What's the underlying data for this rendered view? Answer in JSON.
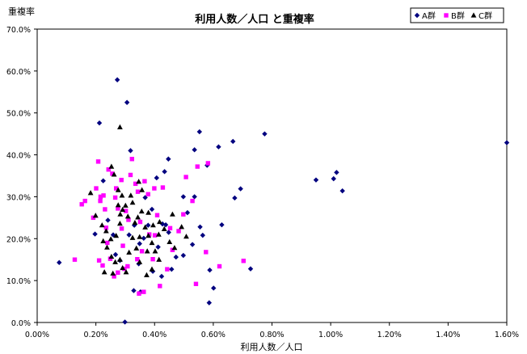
{
  "chart_data": {
    "type": "scatter",
    "title": "利用人数／人口 と重複率",
    "xlabel": "利用人数／人口",
    "ylabel": "重複率",
    "xlim": [
      0,
      0.016
    ],
    "ylim": [
      0,
      0.7
    ],
    "x_ticks": [
      0,
      0.002,
      0.004,
      0.006,
      0.008,
      0.01,
      0.012,
      0.014,
      0.016
    ],
    "x_tick_labels": [
      "0.00%",
      "0.20%",
      "0.40%",
      "0.60%",
      "0.80%",
      "1.00%",
      "1.20%",
      "1.40%",
      "1.60%"
    ],
    "y_ticks": [
      0,
      0.1,
      0.2,
      0.3,
      0.4,
      0.5,
      0.6,
      0.7
    ],
    "y_tick_labels": [
      "0.0%",
      "10.0%",
      "20.0%",
      "30.0%",
      "40.0%",
      "50.0%",
      "60.0%",
      "70.0%"
    ],
    "grid": false,
    "legend_position": "top-right",
    "series": [
      {
        "name": "A群",
        "marker": "diamond",
        "color": "#00007f",
        "points": [
          [
            0.00075,
            0.143
          ],
          [
            0.00212,
            0.476
          ],
          [
            0.00273,
            0.579
          ],
          [
            0.00306,
            0.525
          ],
          [
            0.00318,
            0.41
          ],
          [
            0.00553,
            0.455
          ],
          [
            0.00536,
            0.412
          ],
          [
            0.00667,
            0.432
          ],
          [
            0.00618,
            0.419
          ],
          [
            0.00775,
            0.45
          ],
          [
            0.016,
            0.429
          ],
          [
            0.0102,
            0.358
          ],
          [
            0.0095,
            0.34
          ],
          [
            0.0101,
            0.343
          ],
          [
            0.0104,
            0.314
          ],
          [
            0.00693,
            0.319
          ],
          [
            0.00673,
            0.297
          ],
          [
            0.00629,
            0.233
          ],
          [
            0.00727,
            0.128
          ],
          [
            0.00588,
            0.125
          ],
          [
            0.00601,
            0.082
          ],
          [
            0.00586,
            0.047
          ],
          [
            0.00299,
            0.001
          ],
          [
            0.00329,
            0.076
          ],
          [
            0.00352,
            0.073
          ],
          [
            0.00447,
            0.39
          ],
          [
            0.00434,
            0.36
          ],
          [
            0.00407,
            0.345
          ],
          [
            0.00498,
            0.3
          ],
          [
            0.00536,
            0.3
          ],
          [
            0.00512,
            0.262
          ],
          [
            0.00555,
            0.228
          ],
          [
            0.00564,
            0.208
          ],
          [
            0.00529,
            0.186
          ],
          [
            0.00498,
            0.16
          ],
          [
            0.00473,
            0.156
          ],
          [
            0.00458,
            0.127
          ],
          [
            0.00424,
            0.11
          ],
          [
            0.00391,
            0.27
          ],
          [
            0.00378,
            0.232
          ],
          [
            0.00363,
            0.201
          ],
          [
            0.00349,
            0.188
          ],
          [
            0.00412,
            0.18
          ],
          [
            0.00438,
            0.233
          ],
          [
            0.00225,
            0.338
          ],
          [
            0.00241,
            0.244
          ],
          [
            0.00259,
            0.209
          ],
          [
            0.00267,
            0.162
          ],
          [
            0.00282,
            0.148
          ],
          [
            0.00313,
            0.209
          ],
          [
            0.00331,
            0.232
          ],
          [
            0.00197,
            0.211
          ],
          [
            0.00346,
            0.14
          ],
          [
            0.00427,
            0.235
          ],
          [
            0.00579,
            0.375
          ],
          [
            0.00368,
            0.298
          ],
          [
            0.00394,
            0.122
          ],
          [
            0.00448,
            0.215
          ]
        ]
      },
      {
        "name": "B群",
        "marker": "square",
        "color": "#ff00ff",
        "points": [
          [
            0.00128,
            0.15
          ],
          [
            0.00152,
            0.282
          ],
          [
            0.00163,
            0.29
          ],
          [
            0.00191,
            0.25
          ],
          [
            0.00201,
            0.32
          ],
          [
            0.00208,
            0.384
          ],
          [
            0.00216,
            0.3
          ],
          [
            0.00226,
            0.303
          ],
          [
            0.00243,
            0.365
          ],
          [
            0.00256,
            0.355
          ],
          [
            0.00266,
            0.298
          ],
          [
            0.00275,
            0.272
          ],
          [
            0.00235,
            0.226
          ],
          [
            0.00211,
            0.148
          ],
          [
            0.00223,
            0.136
          ],
          [
            0.00249,
            0.152
          ],
          [
            0.00262,
            0.11
          ],
          [
            0.00275,
            0.119
          ],
          [
            0.00297,
            0.128
          ],
          [
            0.00308,
            0.134
          ],
          [
            0.00323,
            0.39
          ],
          [
            0.00318,
            0.352
          ],
          [
            0.00335,
            0.331
          ],
          [
            0.00343,
            0.312
          ],
          [
            0.00366,
            0.337
          ],
          [
            0.00378,
            0.306
          ],
          [
            0.00399,
            0.32
          ],
          [
            0.00409,
            0.256
          ],
          [
            0.00428,
            0.322
          ],
          [
            0.00401,
            0.208
          ],
          [
            0.00382,
            0.21
          ],
          [
            0.00357,
            0.17
          ],
          [
            0.00341,
            0.151
          ],
          [
            0.00363,
            0.073
          ],
          [
            0.00347,
            0.069
          ],
          [
            0.00418,
            0.087
          ],
          [
            0.00443,
            0.127
          ],
          [
            0.00461,
            0.173
          ],
          [
            0.00482,
            0.218
          ],
          [
            0.00498,
            0.258
          ],
          [
            0.00507,
            0.347
          ],
          [
            0.00529,
            0.29
          ],
          [
            0.00546,
            0.372
          ],
          [
            0.00541,
            0.092
          ],
          [
            0.00582,
            0.38
          ],
          [
            0.00575,
            0.168
          ],
          [
            0.00621,
            0.134
          ],
          [
            0.00703,
            0.147
          ],
          [
            0.00292,
            0.183
          ],
          [
            0.00288,
            0.224
          ],
          [
            0.00302,
            0.266
          ],
          [
            0.00269,
            0.32
          ],
          [
            0.00231,
            0.27
          ],
          [
            0.00394,
            0.151
          ],
          [
            0.00311,
            0.245
          ],
          [
            0.00239,
            0.19
          ],
          [
            0.00351,
            0.24
          ],
          [
            0.00453,
            0.225
          ],
          [
            0.00287,
            0.34
          ],
          [
            0.00215,
            0.29
          ]
        ]
      },
      {
        "name": "C群",
        "marker": "triangle",
        "color": "#000000",
        "points": [
          [
            0.00253,
            0.372
          ],
          [
            0.00262,
            0.353
          ],
          [
            0.00282,
            0.466
          ],
          [
            0.00289,
            0.303
          ],
          [
            0.00276,
            0.28
          ],
          [
            0.00291,
            0.269
          ],
          [
            0.00309,
            0.253
          ],
          [
            0.00282,
            0.236
          ],
          [
            0.00269,
            0.207
          ],
          [
            0.00251,
            0.199
          ],
          [
            0.00235,
            0.218
          ],
          [
            0.00225,
            0.194
          ],
          [
            0.00238,
            0.179
          ],
          [
            0.00253,
            0.157
          ],
          [
            0.00266,
            0.144
          ],
          [
            0.00282,
            0.15
          ],
          [
            0.00291,
            0.13
          ],
          [
            0.00313,
            0.167
          ],
          [
            0.00325,
            0.202
          ],
          [
            0.00333,
            0.238
          ],
          [
            0.00343,
            0.251
          ],
          [
            0.00356,
            0.265
          ],
          [
            0.00368,
            0.227
          ],
          [
            0.00379,
            0.207
          ],
          [
            0.00391,
            0.19
          ],
          [
            0.00402,
            0.17
          ],
          [
            0.00415,
            0.15
          ],
          [
            0.00391,
            0.127
          ],
          [
            0.00373,
            0.113
          ],
          [
            0.00349,
            0.144
          ],
          [
            0.00338,
            0.177
          ],
          [
            0.00357,
            0.316
          ],
          [
            0.00346,
            0.336
          ],
          [
            0.00319,
            0.303
          ],
          [
            0.00301,
            0.279
          ],
          [
            0.00182,
            0.309
          ],
          [
            0.00199,
            0.255
          ],
          [
            0.00229,
            0.12
          ],
          [
            0.00258,
            0.117
          ],
          [
            0.00303,
            0.12
          ],
          [
            0.00395,
            0.232
          ],
          [
            0.00414,
            0.21
          ],
          [
            0.00433,
            0.223
          ],
          [
            0.00451,
            0.192
          ],
          [
            0.00468,
            0.178
          ],
          [
            0.00461,
            0.258
          ],
          [
            0.00492,
            0.228
          ],
          [
            0.00508,
            0.205
          ],
          [
            0.00221,
            0.232
          ],
          [
            0.00283,
            0.258
          ],
          [
            0.00276,
            0.316
          ],
          [
            0.00325,
            0.286
          ],
          [
            0.00349,
            0.204
          ],
          [
            0.00375,
            0.17
          ],
          [
            0.00417,
            0.24
          ],
          [
            0.00379,
            0.262
          ]
        ]
      }
    ]
  }
}
